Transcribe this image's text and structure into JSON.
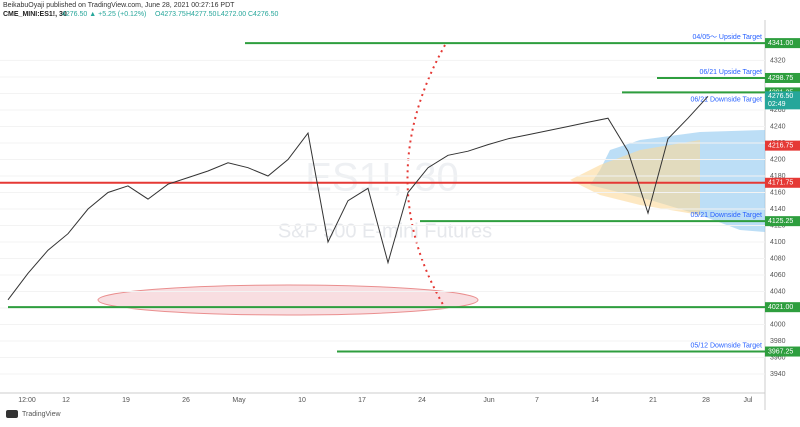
{
  "header": {
    "publisher": "BeikabuOyaji published on TradingView.com, June 28, 2021 00:27:16 PDT",
    "symbol": "CME_MINI:ES1!, 30",
    "quote": "4276.50 ▲ +5.25 (+0.12%)",
    "ohlc": [
      "O4273.75",
      "H4277.50",
      "L4272.00",
      "C4276.50"
    ]
  },
  "watermark": {
    "symbol": "ES1!, 30",
    "name": "S&P 500 E-mini Futures"
  },
  "price_axis": {
    "ylim": [
      3917,
      4369
    ],
    "ticks": [
      3940,
      3960,
      3980,
      4000,
      4020,
      4040,
      4060,
      4080,
      4100,
      4120,
      4140,
      4160,
      4180,
      4200,
      4220,
      4240,
      4260,
      4280,
      4300,
      4320
    ]
  },
  "time_axis": {
    "labels": [
      "12:00",
      "12",
      "19",
      "26",
      "May",
      "10",
      "17",
      "24",
      "Jun",
      "7",
      "14",
      "21",
      "28",
      "Jul"
    ]
  },
  "price": {
    "values": [
      4030,
      4062,
      4090,
      4110,
      4140,
      4160,
      4168,
      4152,
      4170,
      4178,
      4186,
      4196,
      4190,
      4180,
      4200,
      4232,
      4100,
      4150,
      4165,
      4075,
      4160,
      4190,
      4205,
      4210,
      4218,
      4225,
      4230,
      4235,
      4240,
      4245,
      4250,
      4210,
      4135,
      4225,
      4250,
      4276.5
    ]
  },
  "levels": [
    {
      "price": {
        "value": 4341,
        "label": "4341.00"
      },
      "text": "04/05〜 Upside Target",
      "color": "#2e9e3e"
    },
    {
      "price": {
        "value": 4298.75,
        "label": "4298.75"
      },
      "text": "06/21 Upside Target",
      "color": "#2e9e3e"
    },
    {
      "price": {
        "value": 4281.25,
        "label": "4281.25"
      },
      "text": "06/21 Downside Target",
      "color": "#2e9e3e"
    },
    {
      "price": {
        "value": 4171.75,
        "label": "4171.75"
      },
      "color": "#e53935"
    },
    {
      "price": {
        "value": 4125.25,
        "label": "4125.25"
      },
      "text": "05/21 Downside Target",
      "color": "#2e9e3e"
    },
    {
      "price": {
        "value": 4021,
        "label": "4021.00"
      },
      "color": "#2e9e3e"
    },
    {
      "price": {
        "value": 3967.25,
        "label": "3967.25"
      },
      "text": "05/12 Downside Target",
      "color": "#2e9e3e"
    }
  ],
  "last_price": {
    "value": 4276.5,
    "label": "4276.50",
    "countdown": "02:49"
  },
  "ma_label": {
    "value": 4216.75,
    "label": "4216.75"
  },
  "footer": {
    "brand": "TradingView"
  }
}
